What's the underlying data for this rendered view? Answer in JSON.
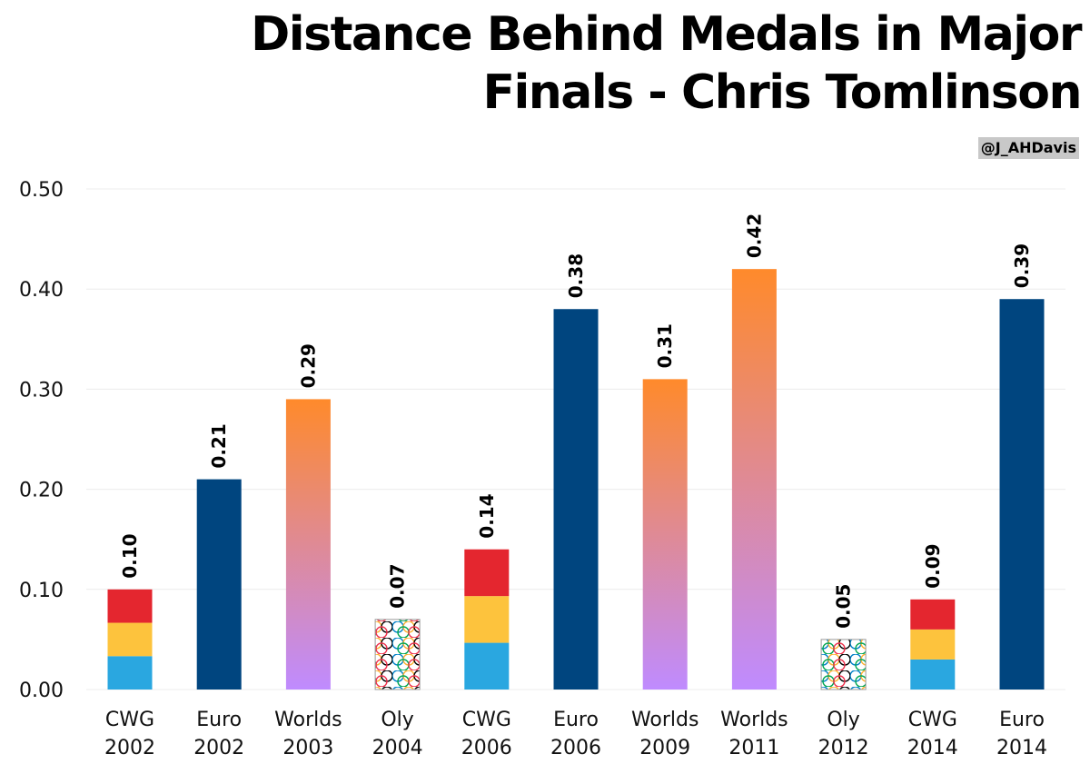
{
  "credit": "@J_AHDavis",
  "chart_data": {
    "type": "bar",
    "title_lines": [
      "Distance Behind Medals in Major",
      "Finals - Chris Tomlinson"
    ],
    "categories": [
      [
        "CWG",
        "2002"
      ],
      [
        "Euro",
        "2002"
      ],
      [
        "Worlds",
        "2003"
      ],
      [
        "Oly",
        "2004"
      ],
      [
        "CWG",
        "2006"
      ],
      [
        "Euro",
        "2006"
      ],
      [
        "Worlds",
        "2009"
      ],
      [
        "Worlds",
        "2011"
      ],
      [
        "Oly",
        "2012"
      ],
      [
        "CWG",
        "2014"
      ],
      [
        "Euro",
        "2014"
      ]
    ],
    "values": [
      0.1,
      0.21,
      0.29,
      0.07,
      0.14,
      0.38,
      0.31,
      0.42,
      0.05,
      0.09,
      0.39
    ],
    "value_labels": [
      "0.10",
      "0.21",
      "0.29",
      "0.07",
      "0.14",
      "0.38",
      "0.31",
      "0.42",
      "0.05",
      "0.09",
      "0.39"
    ],
    "championship": [
      "cwg",
      "euro",
      "worlds",
      "oly",
      "cwg",
      "euro",
      "worlds",
      "worlds",
      "oly",
      "cwg",
      "euro"
    ],
    "yticks": [
      "0.00",
      "0.10",
      "0.20",
      "0.30",
      "0.40",
      "0.50"
    ],
    "ylim": [
      0,
      0.5
    ],
    "grid": true,
    "colors": {
      "euro": "#00457f",
      "cwg_bottom": "#2aa7e0",
      "cwg_middle": "#fdc33d",
      "cwg_top": "#e4262f",
      "worlds_top": "#ff8a2b",
      "worlds_bottom": "#bf8bff",
      "oly_rings": [
        "#0081c8",
        "#fcb131",
        "#000000",
        "#00a651",
        "#ee334e"
      ],
      "grid": "#ececec"
    }
  }
}
